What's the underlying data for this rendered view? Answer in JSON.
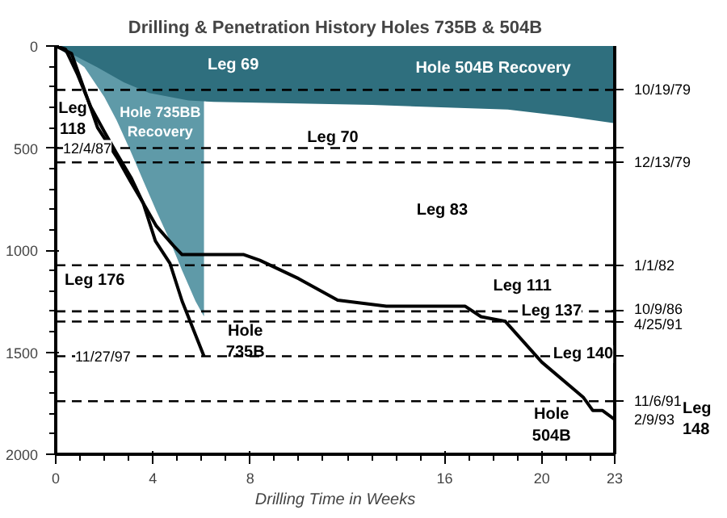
{
  "chart_data": {
    "type": "line",
    "title": "Drilling & Penetration History Holes 735B & 504B",
    "xlabel": "Drilling Time in Weeks",
    "xlim": [
      0,
      23
    ],
    "xticks": [
      0,
      4,
      8,
      16,
      20,
      23
    ],
    "ylim": [
      2000,
      0
    ],
    "yticks": [
      0,
      500,
      1000,
      1500,
      2000
    ],
    "series": [
      {
        "type": "area",
        "color": "#5f9aa8",
        "x": [
          0,
          1.18,
          2,
          2.5,
          3.06,
          3.6,
          4.14,
          4.7,
          5.2,
          5.75,
          6.1
        ],
        "values": [
          0,
          104,
          250,
          363,
          510,
          660,
          808,
          955,
          1100,
          1250,
          1325
        ]
      },
      {
        "type": "area",
        "color": "#2f6f7e",
        "x": [
          0,
          0.5,
          1.7,
          2.8,
          3.85,
          5.46,
          6.5,
          13,
          18.6,
          21.2,
          23
        ],
        "values": [
          0,
          30,
          104,
          178,
          230,
          267,
          274,
          289,
          311,
          348,
          378
        ]
      },
      {
        "color": "#000000",
        "x": [
          0,
          0.4,
          0.9,
          1.45,
          2,
          2.5,
          3.1,
          3.6,
          4.1,
          4.7,
          5.2,
          5.75,
          6.1
        ],
        "values": [
          0,
          15,
          140,
          300,
          420,
          525,
          645,
          770,
          955,
          1065,
          1250,
          1415,
          1520
        ]
      },
      {
        "color": "#000000",
        "x": [
          0,
          0.65,
          1.18,
          1.72,
          2.53,
          3.06,
          3.6,
          4.14,
          4.84,
          5.2,
          7.74,
          8.4,
          10,
          11.6,
          13.6,
          16.85,
          17.5,
          18.5,
          20,
          21.7,
          22.1,
          22.5,
          23
        ],
        "values": [
          0,
          37,
          215,
          400,
          548,
          660,
          770,
          882,
          978,
          1022,
          1022,
          1050,
          1140,
          1245,
          1275,
          1275,
          1326,
          1349,
          1549,
          1720,
          1786,
          1786,
          1830
        ]
      }
    ],
    "ref_lines": [
      {
        "axis": "y",
        "value": 215,
        "line_style": "dashed"
      },
      {
        "axis": "y",
        "value": 500,
        "line_style": "dashed"
      },
      {
        "axis": "y",
        "value": 570,
        "line_style": "dashed"
      },
      {
        "axis": "y",
        "value": 1074,
        "line_style": "dashed"
      },
      {
        "axis": "y",
        "value": 1300,
        "line_style": "dashed"
      },
      {
        "axis": "y",
        "value": 1350,
        "line_style": "dashed"
      },
      {
        "axis": "y",
        "value": 1740,
        "line_style": "dashed"
      },
      {
        "axis": "y",
        "value": 1520,
        "line_style": "dashed"
      }
    ],
    "annotations": [
      "Leg 69",
      "Hole 504B Recovery",
      "Leg\n118",
      "Hole 735BB\nRecovery",
      "Leg 70",
      "Leg 83",
      "Leg 176",
      "Leg 111",
      "Leg 137",
      "Leg 140",
      "Hole\n504B",
      "Hole\n735B",
      "Leg\n148",
      "12/4/87",
      "11/27/97",
      "10/19/79",
      "12/13/79",
      "1/1/82",
      "10/9/86",
      "4/25/91",
      "11/6/91",
      "2/9/93"
    ]
  }
}
